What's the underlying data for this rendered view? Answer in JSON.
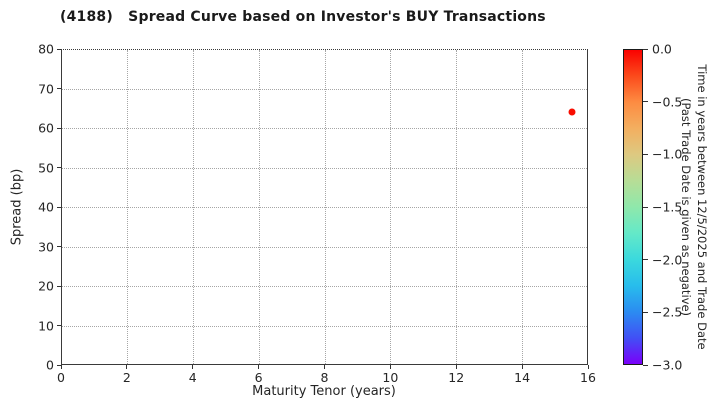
{
  "chart_data": {
    "type": "scatter",
    "title": "(4188)   Spread Curve based on Investor's BUY Transactions",
    "xlabel": "Maturity Tenor (years)",
    "ylabel": "Spread (bp)",
    "xlim": [
      0,
      16
    ],
    "ylim": [
      0,
      80
    ],
    "xticks": [
      0,
      2,
      4,
      6,
      8,
      10,
      12,
      14,
      16
    ],
    "yticks": [
      0,
      10,
      20,
      30,
      40,
      50,
      60,
      70,
      80
    ],
    "grid": true,
    "legend_position": "none",
    "series": [
      {
        "name": "Investor BUY transactions",
        "points": [
          {
            "x": 15.5,
            "y": 64,
            "color_value": 0.0,
            "color": "#f90d00"
          }
        ]
      }
    ],
    "colorbar": {
      "title_lines": [
        "Time in years between 12/5/2025 and Trade Date",
        "(Past Trade Date is given as negative)"
      ],
      "tick_labels": [
        "0.0",
        "−0.5",
        "−1.0",
        "−1.5",
        "−2.0",
        "−2.5",
        "−3.0"
      ],
      "range_top": 0.0,
      "range_bottom": -3.0,
      "colormap": "rainbow (red = 0.0 at top, violet = −3.0 at bottom)",
      "gradient_stops": [
        "#fa0200",
        "#fb4b1c",
        "#fd8c42",
        "#f3af60",
        "#ddc981",
        "#b7dd96",
        "#8fe8ab",
        "#64e9c8",
        "#3bd9dd",
        "#28bdec",
        "#2b8cf1",
        "#4150f5",
        "#7a00f9"
      ]
    }
  },
  "colors": {
    "background": "#ffffff",
    "frame": "#3a3a3a",
    "grid": "#a6a6a6",
    "text": "#262626",
    "point": "#f90d00"
  }
}
